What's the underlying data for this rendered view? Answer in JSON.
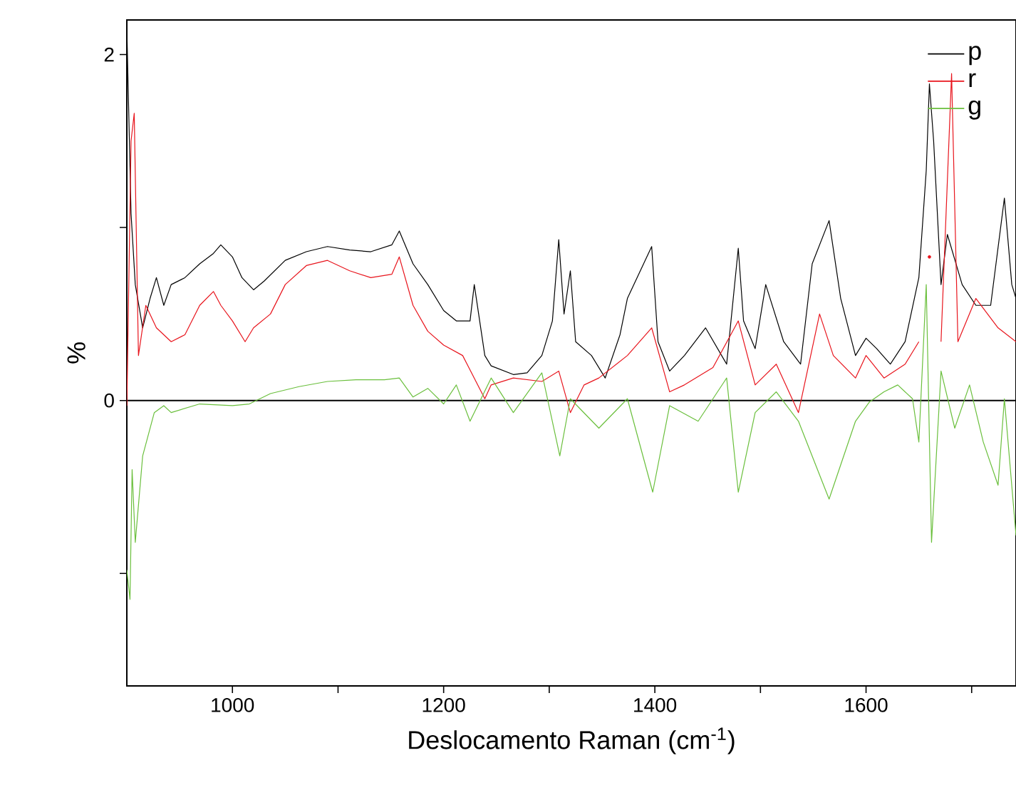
{
  "chart_data": {
    "type": "line",
    "xlabel": "Deslocamento Raman (cm$^{-1}$)",
    "ylabel": "%",
    "xlim": [
      900,
      1742
    ],
    "ylim": [
      -1.65,
      2.2
    ],
    "xticks": [
      1000,
      {
        "value": 1100,
        "label": null
      },
      1200,
      {
        "value": 1300,
        "label": null
      },
      1400,
      {
        "value": 1500,
        "label": null
      },
      1600,
      {
        "value": 1700,
        "label": null
      }
    ],
    "yticks": [
      {
        "value": -1,
        "label": null
      },
      0,
      {
        "value": 1,
        "label": null
      },
      2
    ],
    "legend": "top right",
    "grid": false,
    "ref_lines": [
      {
        "axis": "y",
        "value": 0,
        "color": "#000000"
      }
    ],
    "series": [
      {
        "name": "p",
        "color": "#000000",
        "x": [
          900,
          904,
          908,
          915,
          922,
          928,
          935,
          942,
          955,
          969,
          982,
          989,
          1000,
          1009,
          1020,
          1030,
          1050,
          1070,
          1090,
          1111,
          1131,
          1151,
          1158,
          1171,
          1185,
          1200,
          1212,
          1225,
          1229,
          1239,
          1245,
          1266,
          1279,
          1293,
          1303,
          1309,
          1314,
          1320,
          1325,
          1340,
          1353,
          1367,
          1374,
          1397,
          1403,
          1414,
          1428,
          1448,
          1468,
          1479,
          1484,
          1495,
          1505,
          1522,
          1538,
          1549,
          1565,
          1576,
          1590,
          1600,
          1610,
          1623,
          1637,
          1650,
          1657,
          1660,
          1664,
          1671,
          1677,
          1691,
          1704,
          1718,
          1731,
          1738,
          1742
        ],
        "values": [
          2.15,
          1.08,
          0.67,
          0.42,
          0.59,
          0.71,
          0.55,
          0.67,
          0.71,
          0.79,
          0.85,
          0.9,
          0.83,
          0.71,
          0.64,
          0.69,
          0.81,
          0.86,
          0.89,
          0.87,
          0.86,
          0.9,
          0.98,
          0.79,
          0.67,
          0.52,
          0.46,
          0.46,
          0.67,
          0.26,
          0.2,
          0.15,
          0.16,
          0.26,
          0.46,
          0.93,
          0.5,
          0.75,
          0.34,
          0.26,
          0.13,
          0.38,
          0.59,
          0.89,
          0.34,
          0.17,
          0.26,
          0.42,
          0.21,
          0.88,
          0.46,
          0.3,
          0.67,
          0.34,
          0.21,
          0.79,
          1.04,
          0.59,
          0.26,
          0.36,
          0.3,
          0.21,
          0.34,
          0.71,
          1.33,
          1.83,
          1.5,
          0.67,
          0.96,
          0.67,
          0.55,
          0.55,
          1.17,
          0.67,
          0.59
        ]
      },
      {
        "name": "r",
        "color": "#e8141c",
        "x": [
          900,
          904,
          907,
          911,
          918,
          928,
          942,
          955,
          969,
          982,
          989,
          1000,
          1012,
          1020,
          1036,
          1050,
          1070,
          1090,
          1111,
          1131,
          1151,
          1158,
          1171,
          1185,
          1200,
          1218,
          1239,
          1245,
          1266,
          1293,
          1309,
          1320,
          1333,
          1347,
          1374,
          1397,
          1414,
          1428,
          1455,
          1479,
          1495,
          1515,
          1536,
          1556,
          1569,
          1590,
          1600,
          1617,
          1637,
          1650,
          1654,
          1660,
          1662,
          1671,
          1681,
          1687,
          1704,
          1725,
          1742
        ],
        "values": [
          -0.03,
          1.5,
          1.66,
          0.26,
          0.55,
          0.42,
          0.34,
          0.38,
          0.55,
          0.63,
          0.55,
          0.46,
          0.34,
          0.42,
          0.5,
          0.67,
          0.78,
          0.81,
          0.75,
          0.71,
          0.73,
          0.83,
          0.55,
          0.4,
          0.32,
          0.26,
          0.01,
          0.09,
          0.13,
          0.11,
          0.17,
          -0.07,
          0.09,
          0.13,
          0.26,
          0.42,
          0.05,
          0.09,
          0.19,
          0.46,
          0.09,
          0.21,
          -0.07,
          0.5,
          0.26,
          0.13,
          0.26,
          0.13,
          0.21,
          0.34,
          null,
          0.83,
          null,
          0.34,
          1.89,
          0.34,
          0.59,
          0.42,
          0.34
        ]
      },
      {
        "name": "g",
        "color": "#6abf3c",
        "x": [
          900,
          903,
          905,
          908,
          915,
          926,
          935,
          942,
          969,
          1000,
          1016,
          1036,
          1063,
          1090,
          1117,
          1144,
          1158,
          1171,
          1185,
          1200,
          1212,
          1225,
          1245,
          1266,
          1293,
          1310,
          1320,
          1347,
          1374,
          1398,
          1414,
          1441,
          1468,
          1479,
          1495,
          1515,
          1536,
          1565,
          1590,
          1603,
          1617,
          1630,
          1644,
          1650,
          1657,
          1662,
          1671,
          1684,
          1698,
          1711,
          1725,
          1731,
          1742
        ],
        "values": [
          -0.98,
          -1.15,
          -0.4,
          -0.82,
          -0.32,
          -0.07,
          -0.03,
          -0.07,
          -0.02,
          -0.03,
          -0.02,
          0.04,
          0.08,
          0.11,
          0.12,
          0.12,
          0.13,
          0.02,
          0.07,
          -0.02,
          0.09,
          -0.12,
          0.13,
          -0.07,
          0.16,
          -0.32,
          0.01,
          -0.16,
          0.01,
          -0.53,
          -0.03,
          -0.12,
          0.13,
          -0.53,
          -0.07,
          0.05,
          -0.12,
          -0.57,
          -0.12,
          -0.01,
          0.05,
          0.09,
          0.01,
          -0.24,
          0.67,
          -0.82,
          0.17,
          -0.16,
          0.09,
          -0.24,
          -0.49,
          0.01,
          -0.78
        ]
      }
    ]
  }
}
